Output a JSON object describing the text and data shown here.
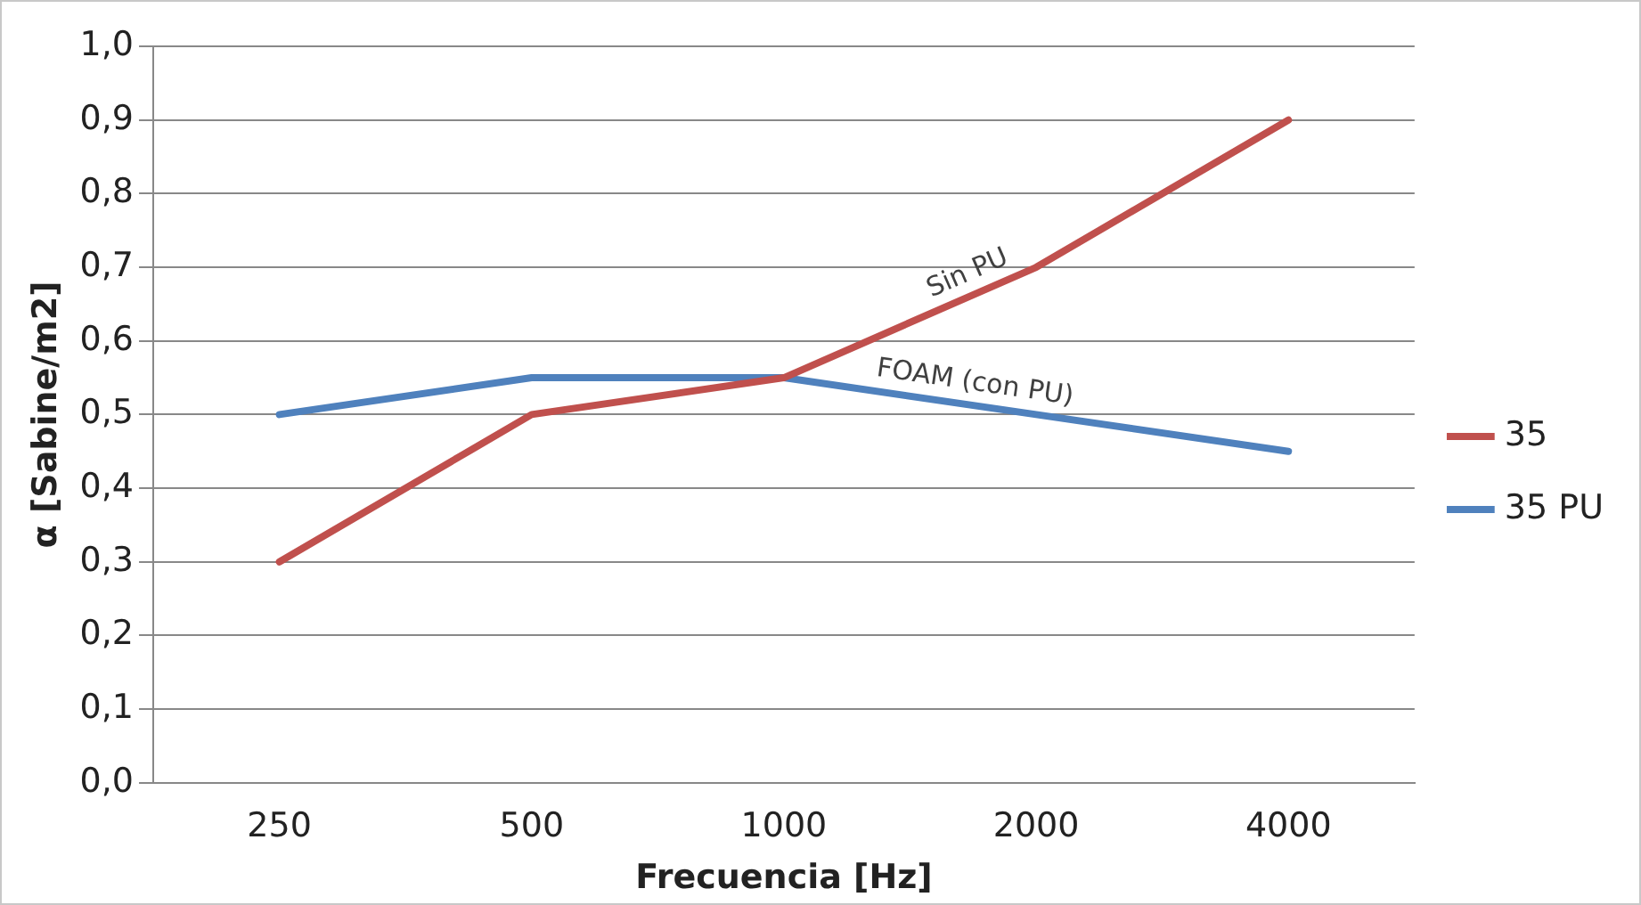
{
  "chart_data": {
    "type": "line",
    "xlabel": "Frecuencia [Hz]",
    "ylabel": "α [Sabine/m2]",
    "categories": [
      "250",
      "500",
      "1000",
      "2000",
      "4000"
    ],
    "series": [
      {
        "name": "35",
        "color": "#c0504d",
        "values": [
          0.3,
          0.5,
          0.55,
          0.7,
          0.9
        ]
      },
      {
        "name": "35 PU",
        "color": "#4f81bd",
        "values": [
          0.5,
          0.55,
          0.55,
          0.5,
          0.45
        ]
      }
    ],
    "ylim": [
      0,
      1
    ],
    "yticks": [
      {
        "value": 0,
        "label": "0,0"
      },
      {
        "value": 0.1,
        "label": "0,1"
      },
      {
        "value": 0.2,
        "label": "0,2"
      },
      {
        "value": 0.3,
        "label": "0,3"
      },
      {
        "value": 0.4,
        "label": "0,4"
      },
      {
        "value": 0.5,
        "label": "0,5"
      },
      {
        "value": 0.6,
        "label": "0,6"
      },
      {
        "value": 0.7,
        "label": "0,7"
      },
      {
        "value": 0.8,
        "label": "0,8"
      },
      {
        "value": 0.9,
        "label": "0,9"
      },
      {
        "value": 1,
        "label": "1,0"
      }
    ],
    "annotations": [
      {
        "text": "Sin PU",
        "x": "2000",
        "y": 0.7
      },
      {
        "text": "FOAM (con PU)",
        "x": "2000",
        "y": 0.5
      }
    ],
    "grid": "y",
    "legend": "right",
    "marker": "none",
    "line_style": "solid"
  }
}
